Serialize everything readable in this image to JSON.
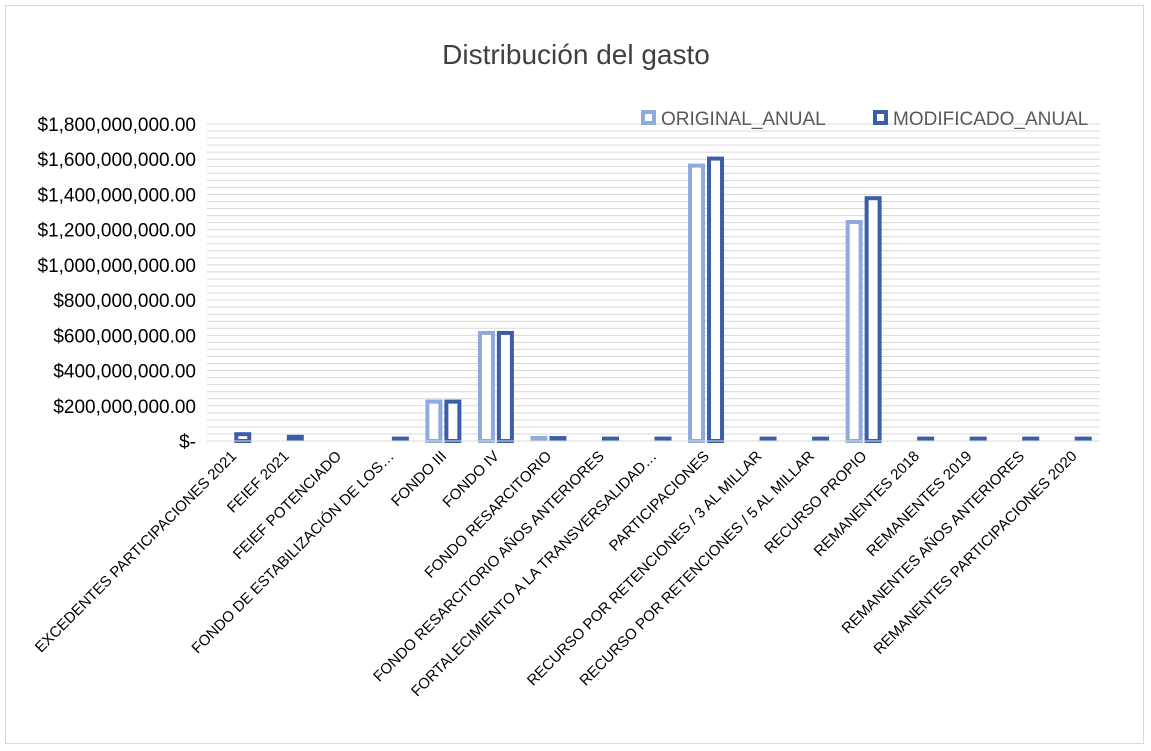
{
  "chart_data": {
    "type": "bar",
    "title": "Distribución del gasto",
    "categories": [
      "EXCEDENTES PARTICIPACIONES 2021",
      "FEIEF 2021",
      "FEIEF POTENCIADO",
      "FONDO DE ESTABILIZACIÓN DE LOS…",
      "FONDO III",
      "FONDO IV",
      "FONDO RESARCITORIO",
      "FONDO RESARCITORIO AÑOS ANTERIORES",
      "FORTALECIMIENTO A LA TRANSVERSALIDAD…",
      "PARTICIPACIONES",
      "RECURSO POR RETENCIONES / 3 AL MILLAR",
      "RECURSO POR RETENCIONES / 5 AL MILLAR",
      "RECURSO PROPIO",
      "REMANENTES 2018",
      "REMANENTES 2019",
      "REMANENTES AÑOS ANTERIORES",
      "REMANENTES PARTICIPACIONES 2020"
    ],
    "series": [
      {
        "name": "ORIGINAL_ANUAL",
        "color": "#8faadc",
        "values": [
          0,
          0,
          0,
          0,
          235000000,
          625000000,
          28000000,
          0,
          0,
          1575000000,
          0,
          0,
          1255000000,
          0,
          0,
          0,
          0
        ]
      },
      {
        "name": "MODIFICADO_ANUAL",
        "color": "#3a5ea8",
        "values": [
          50000000,
          35000000,
          0,
          25000000,
          235000000,
          625000000,
          28000000,
          25000000,
          25000000,
          1615000000,
          25000000,
          25000000,
          1390000000,
          25000000,
          25000000,
          25000000,
          25000000
        ]
      }
    ],
    "ylim": [
      0,
      1800000000
    ],
    "yticks": [
      0,
      200000000,
      400000000,
      600000000,
      800000000,
      1000000000,
      1200000000,
      1400000000,
      1600000000,
      1800000000
    ],
    "ytick_labels": [
      "$-",
      "$200,000,000.00",
      "$400,000,000.00",
      "$600,000,000.00",
      "$800,000,000.00",
      "$1,000,000,000.00",
      "$1,200,000,000.00",
      "$1,400,000,000.00",
      "$1,600,000,000.00",
      "$1,800,000,000.00"
    ],
    "grid": true,
    "legend_position": "top-right",
    "bar_style": "outlined"
  }
}
